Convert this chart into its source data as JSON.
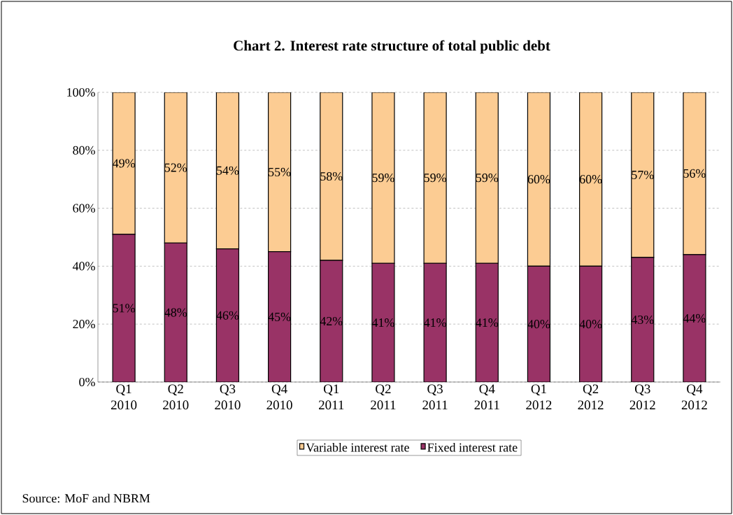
{
  "chart_data": {
    "type": "bar",
    "title": "Chart 2. Interest rate structure of total public debt",
    "categories": [
      "Q1 2010",
      "Q2 2010",
      "Q3 2010",
      "Q4 2010",
      "Q1 2011",
      "Q2 2011",
      "Q3 2011",
      "Q4 2011",
      "Q1 2012",
      "Q2 2012",
      "Q3 2012",
      "Q4 2012"
    ],
    "stacked": true,
    "series": [
      {
        "name": "Fixed interest rate",
        "color": "#993366",
        "values": [
          51,
          48,
          46,
          45,
          42,
          41,
          41,
          41,
          40,
          40,
          43,
          44
        ],
        "value_labels": [
          "51%",
          "48%",
          "46%",
          "45%",
          "42%",
          "41%",
          "41%",
          "41%",
          "40%",
          "40%",
          "43%",
          "44%"
        ]
      },
      {
        "name": "Variable interest rate",
        "color": "#fccc93",
        "values": [
          49,
          52,
          54,
          55,
          58,
          59,
          59,
          59,
          60,
          60,
          57,
          56
        ],
        "value_labels": [
          "49%",
          "52%",
          "54%",
          "55%",
          "58%",
          "59%",
          "59%",
          "59%",
          "60%",
          "60%",
          "57%",
          "56%"
        ]
      }
    ],
    "ylim": [
      0,
      100
    ],
    "yticks": [
      {
        "value": 0,
        "label": "0%"
      },
      {
        "value": 20,
        "label": "20%"
      },
      {
        "value": 40,
        "label": "40%"
      },
      {
        "value": 60,
        "label": "60%"
      },
      {
        "value": 80,
        "label": "80%"
      },
      {
        "value": 100,
        "label": "100%"
      }
    ],
    "grid": "y",
    "legend": "bottom",
    "annotations": [
      "Source: MoF and NBRM"
    ]
  }
}
